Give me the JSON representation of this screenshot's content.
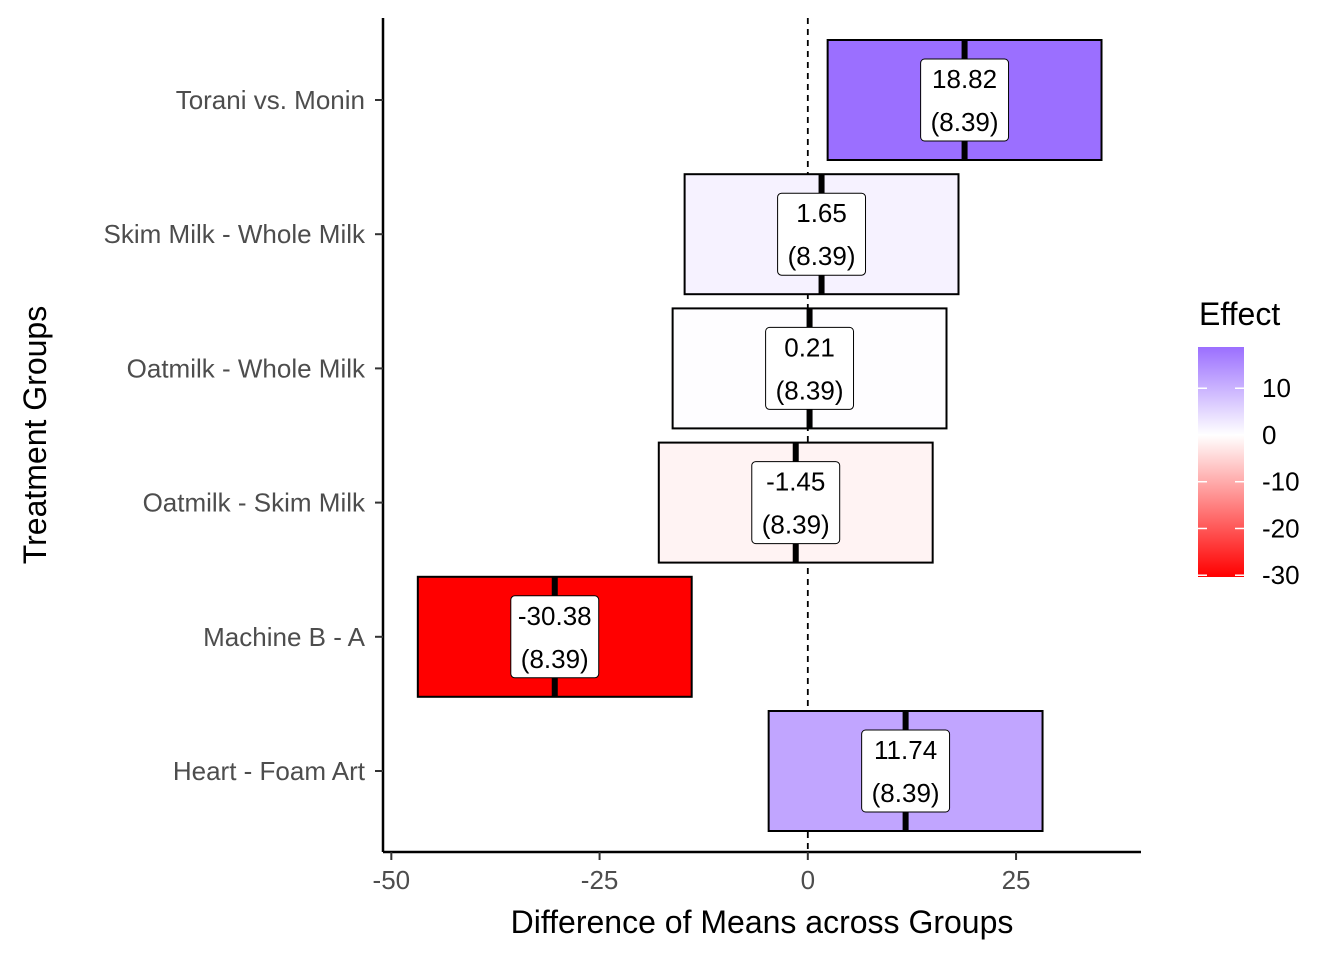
{
  "chart_data": {
    "type": "bar",
    "subtype": "horizontal-interval-with-labels",
    "xlabel": "Difference of Means across Groups",
    "ylabel": "Treatment Groups",
    "xlim": [
      -51,
      40
    ],
    "x_ticks": [
      -50,
      -25,
      0,
      25
    ],
    "x_tick_labels": [
      "-50",
      "-25",
      "0",
      "25"
    ],
    "reference_line": 0,
    "categories": [
      "Torani vs. Monin",
      "Skim Milk - Whole Milk",
      "Oatmilk - Whole Milk",
      "Oatmilk - Skim Milk",
      "Machine B - A",
      "Heart - Foam Art"
    ],
    "estimates": [
      18.82,
      1.65,
      0.21,
      -1.45,
      -30.38,
      11.74
    ],
    "std_errors": [
      8.39,
      8.39,
      8.39,
      8.39,
      8.39,
      8.39
    ],
    "estimate_labels": [
      "18.82",
      "1.65",
      "0.21",
      "-1.45",
      "-30.38",
      "11.74"
    ],
    "se_labels": [
      "(8.39)",
      "(8.39)",
      "(8.39)",
      "(8.39)",
      "(8.39)",
      "(8.39)"
    ],
    "interval_low": [
      2.38,
      -14.79,
      -16.23,
      -17.89,
      -46.82,
      -4.7
    ],
    "interval_high": [
      35.26,
      18.09,
      16.65,
      14.99,
      -13.94,
      28.18
    ],
    "legend": {
      "title": "Effect",
      "placement": "right",
      "range": [
        -30.38,
        18.82
      ],
      "ticks": [
        10,
        0,
        -10,
        -20,
        -30
      ],
      "tick_labels": [
        "10",
        "0",
        "-10",
        "-20",
        "-30"
      ],
      "colors": {
        "low": "#FF0000",
        "mid": "#FFFFFF",
        "high": "#9B6FFF"
      }
    },
    "grid": false
  }
}
